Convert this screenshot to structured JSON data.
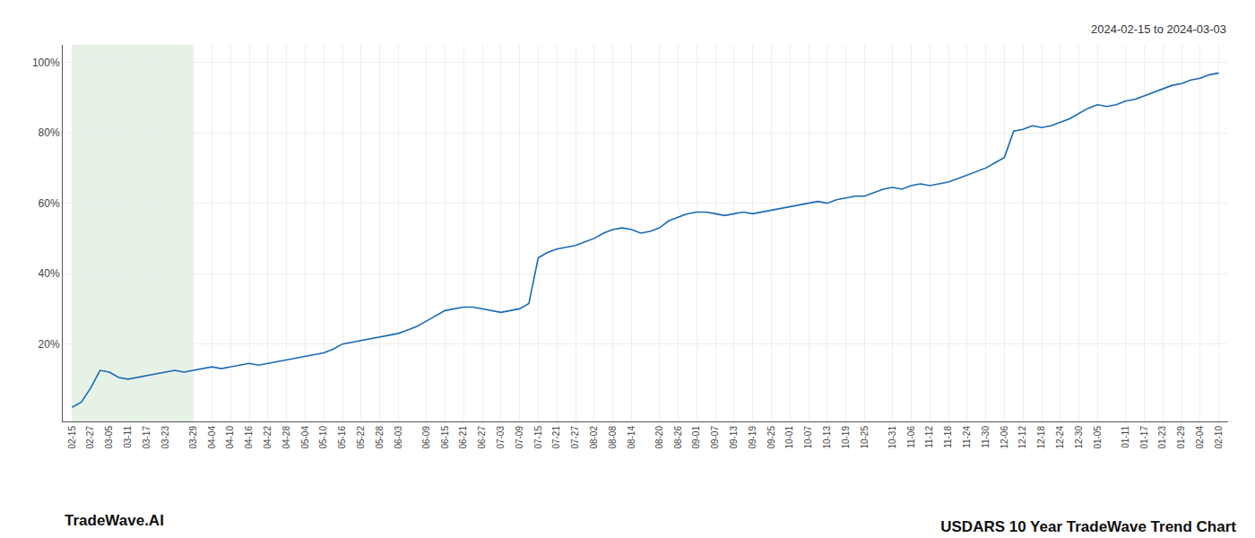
{
  "chart_data": {
    "type": "line",
    "title": "USDARS 10 Year TradeWave Trend Chart",
    "subtitle": "2024-02-15 to 2024-03-03",
    "annotations": [
      "TradeWave.AI"
    ],
    "categories": [
      "02-15",
      null,
      "02-27",
      null,
      "03-05",
      null,
      "03-11",
      null,
      "03-17",
      null,
      "03-23",
      null,
      null,
      "03-29",
      null,
      "04-04",
      null,
      "04-10",
      null,
      "04-16",
      null,
      "04-22",
      null,
      "04-28",
      null,
      "05-04",
      null,
      "05-10",
      null,
      "05-16",
      null,
      "05-22",
      null,
      "05-28",
      null,
      "06-03",
      null,
      null,
      "06-09",
      null,
      "06-15",
      null,
      "06-21",
      null,
      "06-27",
      null,
      "07-03",
      null,
      "07-09",
      null,
      "07-15",
      null,
      "07-21",
      null,
      "07-27",
      null,
      "08-02",
      null,
      "08-08",
      null,
      "08-14",
      null,
      null,
      "08-20",
      null,
      "08-26",
      null,
      "09-01",
      null,
      "09-07",
      null,
      "09-13",
      null,
      "09-19",
      null,
      "09-25",
      null,
      "10-01",
      null,
      "10-07",
      null,
      "10-13",
      null,
      "10-19",
      null,
      "10-25",
      null,
      null,
      "10-31",
      null,
      "11-06",
      null,
      "11-12",
      null,
      "11-18",
      null,
      "11-24",
      null,
      "11-30",
      null,
      "12-06",
      null,
      "12-12",
      null,
      "12-18",
      null,
      "12-24",
      null,
      "12-30",
      null,
      "01-05",
      null,
      null,
      "01-11",
      null,
      "01-17",
      null,
      "01-23",
      null,
      "01-29",
      null,
      "02-04",
      null,
      "02-10"
    ],
    "values": [
      2.0,
      3.5,
      7.5,
      12.5,
      12.0,
      10.5,
      10.0,
      10.5,
      11.0,
      11.5,
      12.0,
      12.5,
      12.0,
      12.5,
      13.0,
      13.5,
      13.0,
      13.5,
      14.0,
      14.5,
      14.0,
      14.5,
      15.0,
      15.5,
      16.0,
      16.5,
      17.0,
      17.5,
      18.5,
      20.0,
      20.5,
      21.0,
      21.5,
      22.0,
      22.5,
      23.0,
      24.0,
      25.0,
      26.5,
      28.0,
      29.5,
      30.0,
      30.5,
      30.5,
      30.0,
      29.5,
      29.0,
      29.5,
      30.0,
      31.5,
      44.5,
      46.0,
      47.0,
      47.5,
      48.0,
      49.0,
      50.0,
      51.5,
      52.5,
      53.0,
      52.5,
      51.5,
      52.0,
      53.0,
      55.0,
      56.0,
      57.0,
      57.5,
      57.5,
      57.0,
      56.5,
      57.0,
      57.5,
      57.0,
      57.5,
      58.0,
      58.5,
      59.0,
      59.5,
      60.0,
      60.5,
      60.0,
      61.0,
      61.5,
      62.0,
      62.0,
      63.0,
      64.0,
      64.5,
      64.0,
      65.0,
      65.5,
      65.0,
      65.5,
      66.0,
      67.0,
      68.0,
      69.0,
      70.0,
      71.5,
      73.0,
      80.5,
      81.0,
      82.0,
      81.5,
      82.0,
      83.0,
      84.0,
      85.5,
      87.0,
      88.0,
      87.5,
      88.0,
      89.0,
      89.5,
      90.5,
      91.5,
      92.5,
      93.5,
      94.0,
      95.0,
      95.5,
      96.5,
      97.0
    ],
    "color": "#1a6ab5",
    "ylim": [
      -2,
      105
    ],
    "yticks": [
      {
        "value": 20,
        "label": "20%"
      },
      {
        "value": 40,
        "label": "40%"
      },
      {
        "value": 60,
        "label": "60%"
      },
      {
        "value": 80,
        "label": "80%"
      },
      {
        "value": 100,
        "label": "100%"
      }
    ],
    "grid": true,
    "shade": {
      "start": 0,
      "end": 13,
      "color": "#d6ead6"
    }
  }
}
